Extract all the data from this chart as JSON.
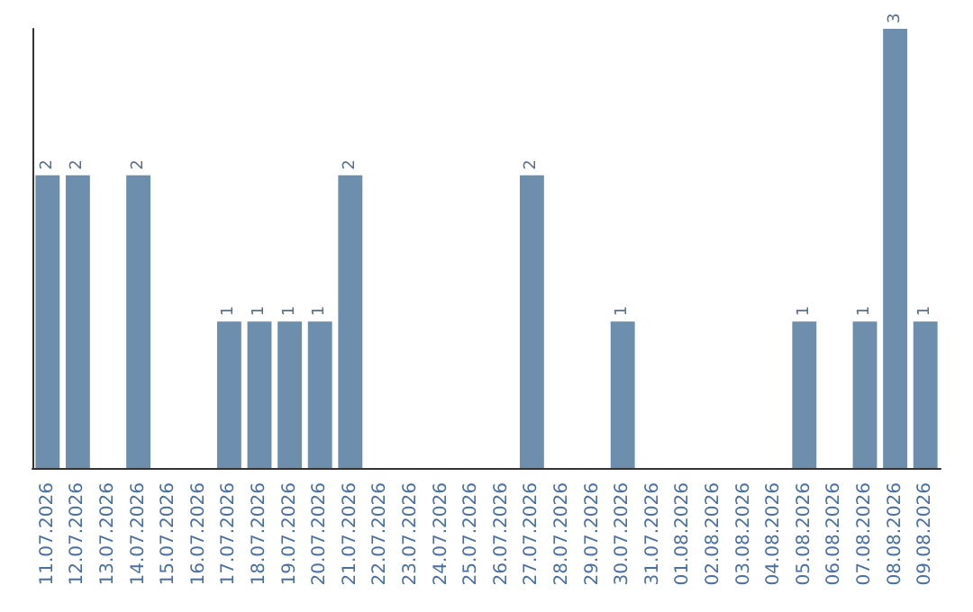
{
  "chart_data": {
    "type": "bar",
    "categories": [
      "11.07.2026",
      "12.07.2026",
      "13.07.2026",
      "14.07.2026",
      "15.07.2026",
      "16.07.2026",
      "17.07.2026",
      "18.07.2026",
      "19.07.2026",
      "20.07.2026",
      "21.07.2026",
      "22.07.2026",
      "23.07.2026",
      "24.07.2026",
      "25.07.2026",
      "26.07.2026",
      "27.07.2026",
      "28.07.2026",
      "29.07.2026",
      "30.07.2026",
      "31.07.2026",
      "01.08.2026",
      "02.08.2026",
      "03.08.2026",
      "04.08.2026",
      "05.08.2026",
      "06.08.2026",
      "07.08.2026",
      "08.08.2026",
      "09.08.2026"
    ],
    "values": [
      2,
      2,
      0,
      2,
      0,
      0,
      1,
      1,
      1,
      1,
      2,
      0,
      0,
      0,
      0,
      0,
      2,
      0,
      0,
      1,
      0,
      0,
      0,
      0,
      0,
      1,
      0,
      1,
      3,
      1
    ],
    "value_labels": [
      "2",
      "2",
      null,
      "2",
      null,
      null,
      "1",
      "1",
      "1",
      "1",
      "2",
      null,
      null,
      null,
      null,
      null,
      "2",
      null,
      null,
      "1",
      null,
      null,
      null,
      null,
      null,
      "1",
      null,
      "1",
      "3",
      "1"
    ],
    "color": "#6d8fad",
    "grid": false,
    "tick_labels": "x"
  }
}
